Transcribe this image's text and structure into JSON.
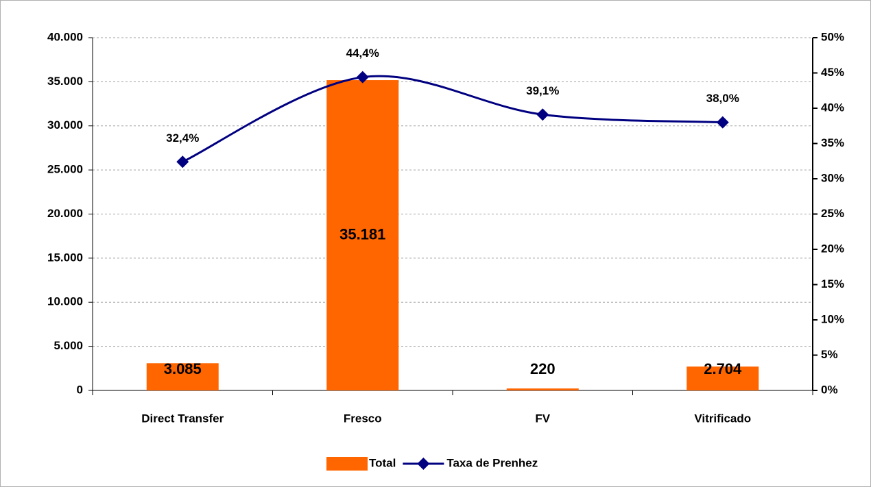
{
  "chart_data": {
    "type": "bar_line",
    "categories": [
      "Direct Transfer",
      "Fresco",
      "FV",
      "Vitrificado"
    ],
    "series": [
      {
        "name": "Total",
        "type": "bar",
        "color": "#ff6600",
        "values": [
          3085,
          35181,
          220,
          2704
        ],
        "value_labels": [
          "3.085",
          "35.181",
          "220",
          "2.704"
        ]
      },
      {
        "name": "Taxa de Prenhez",
        "type": "line",
        "axis": "y2",
        "color": "#000080",
        "values": [
          32.4,
          44.4,
          39.1,
          38.0
        ],
        "value_labels": [
          "32,4%",
          "44,4%",
          "39,1%",
          "38,0%"
        ]
      }
    ],
    "ylim": [
      0,
      40000
    ],
    "yticks": [
      0,
      {
        "value": 5000,
        "label": "5.000"
      },
      {
        "value": 10000,
        "label": "10.000"
      },
      {
        "value": 15000,
        "label": "15.000"
      },
      {
        "value": 20000,
        "label": "20.000"
      },
      {
        "value": 25000,
        "label": "25.000"
      },
      {
        "value": 30000,
        "label": "30.000"
      },
      {
        "value": 35000,
        "label": "35.000"
      },
      {
        "value": 40000,
        "label": "40.000"
      }
    ],
    "y2lim": [
      0,
      50
    ],
    "y2ticks": [
      {
        "value": 0,
        "label": "0%"
      },
      {
        "value": 5,
        "label": "5%"
      },
      {
        "value": 10,
        "label": "10%"
      },
      {
        "value": 15,
        "label": "15%"
      },
      {
        "value": 20,
        "label": "20%"
      },
      {
        "value": 25,
        "label": "25%"
      },
      {
        "value": 30,
        "label": "30%"
      },
      {
        "value": 35,
        "label": "35%"
      },
      {
        "value": 40,
        "label": "40%"
      },
      {
        "value": 45,
        "label": "45%"
      },
      {
        "value": 50,
        "label": "50%"
      }
    ],
    "grid": true,
    "legend": "bottom"
  }
}
